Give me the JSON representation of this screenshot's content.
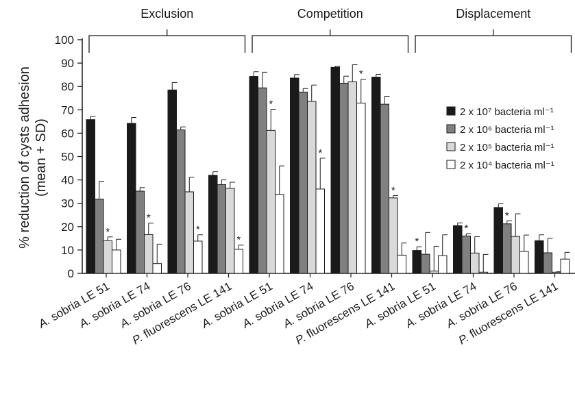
{
  "chart_data": {
    "type": "bar",
    "ylabel_line1": "% reduction of cysts adhesion",
    "ylabel_line2": "(mean + SD)",
    "ylim": [
      0,
      100
    ],
    "yticks": [
      "0",
      "10",
      "20",
      "30",
      "40",
      "50",
      "60",
      "70",
      "80",
      "90",
      "100"
    ],
    "groups": [
      "Exclusion",
      "Competition",
      "Displacement"
    ],
    "categories": [
      "A. sobria LE 51",
      "A. sobria LE 74",
      "A. sobria LE 76",
      "P. fluorescens LE 141",
      "A. sobria LE 51",
      "A. sobria LE 74",
      "A. sobria LE 76",
      "P. fluorescens LE 141",
      "A. sobria LE 51",
      "A. sobria LE 74",
      "A. sobria LE 76",
      "P. fluorescens LE 141"
    ],
    "series": [
      {
        "name": "2 x 10⁷ bacteria ml⁻¹",
        "color": "#1a1a1a",
        "values": [
          65.8,
          64.2,
          78.5,
          42.0,
          84.3,
          83.6,
          88.2,
          84.0,
          9.8,
          20.4,
          28.2,
          14.0
        ],
        "errors": [
          1.5,
          2.5,
          3.2,
          1.5,
          2.0,
          1.5,
          0.5,
          1.2,
          1.6,
          1.2,
          1.6,
          2.5
        ]
      },
      {
        "name": "2 x 10⁶ bacteria ml⁻¹",
        "color": "#808080",
        "values": [
          31.8,
          35.2,
          61.4,
          38.0,
          79.4,
          77.6,
          81.4,
          72.4,
          8.2,
          16.0,
          21.2,
          8.8
        ],
        "errors": [
          7.6,
          1.5,
          1.3,
          2.0,
          6.7,
          1.5,
          3.0,
          3.4,
          9.3,
          1.0,
          1.3,
          6.2
        ]
      },
      {
        "name": "2 x 10⁵ bacteria ml⁻¹",
        "color": "#d9d9d9",
        "values": [
          14.0,
          16.6,
          34.9,
          36.4,
          61.2,
          73.6,
          82.0,
          32.3,
          1.0,
          8.7,
          15.8,
          0.5
        ],
        "errors": [
          1.6,
          4.9,
          6.3,
          2.6,
          9.0,
          7.0,
          7.3,
          1.0,
          10.6,
          7.0,
          9.7,
          0.2
        ]
      },
      {
        "name": "2 x 10⁴ bacteria ml⁻¹",
        "color": "#ffffff",
        "values": [
          10.0,
          4.2,
          13.8,
          10.3,
          33.8,
          36.1,
          72.9,
          7.8,
          7.6,
          0.5,
          9.4,
          6.1
        ],
        "errors": [
          4.6,
          8.3,
          2.7,
          1.8,
          12.2,
          13.2,
          10.2,
          5.2,
          8.9,
          7.6,
          7.0,
          2.9
        ]
      }
    ],
    "significance": [
      {
        "category": 0,
        "series": 2
      },
      {
        "category": 1,
        "series": 2
      },
      {
        "category": 2,
        "series": 3
      },
      {
        "category": 3,
        "series": 3
      },
      {
        "category": 4,
        "series": 2
      },
      {
        "category": 5,
        "series": 3
      },
      {
        "category": 6,
        "series": 3
      },
      {
        "category": 7,
        "series": 2
      },
      {
        "category": 8,
        "series": 0
      },
      {
        "category": 9,
        "series": 1
      },
      {
        "category": 10,
        "series": 1
      }
    ],
    "significance_mark": "*",
    "legend_position": "right",
    "grid": false
  }
}
